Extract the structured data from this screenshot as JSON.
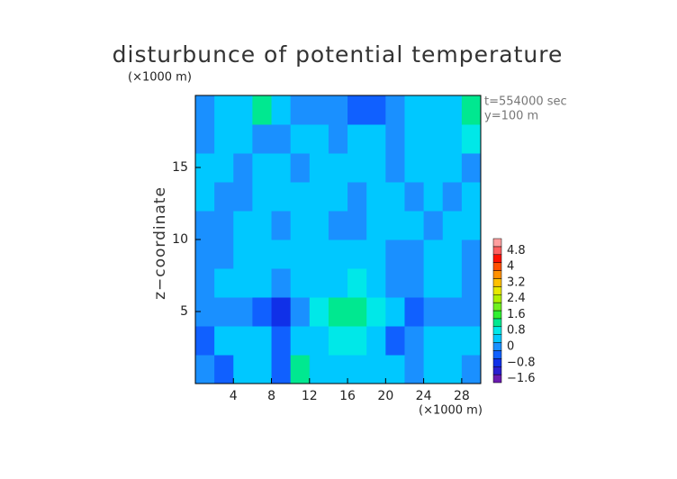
{
  "chart_data": {
    "type": "heatmap",
    "title": "disturbunce of potential temperature",
    "ylabel": "z−coordinate",
    "y_unit": "(×1000 m)",
    "x_unit": "(×1000 m)",
    "annotations": [
      "t=554000 sec",
      "y=100 m"
    ],
    "xlim": [
      0,
      30
    ],
    "ylim": [
      0,
      20
    ],
    "xticks": [
      4,
      8,
      12,
      16,
      20,
      24,
      28
    ],
    "yticks": [
      5,
      10,
      15
    ],
    "xbins": [
      0,
      2,
      4,
      6,
      8,
      10,
      12,
      14,
      16,
      18,
      20,
      22,
      24,
      26,
      28,
      30
    ],
    "ybins": [
      0,
      2,
      4,
      6,
      8,
      10,
      12,
      14,
      16,
      18,
      20
    ],
    "z": [
      [
        -0.3,
        -0.6,
        0.1,
        0.2,
        -0.6,
        0.9,
        0.3,
        0.2,
        0.1,
        0.2,
        0.1,
        -0.2,
        0.2,
        0.1,
        -0.3
      ],
      [
        -0.7,
        0.1,
        0.2,
        0.3,
        -0.5,
        0.3,
        0.3,
        0.5,
        0.4,
        0.1,
        -0.5,
        -0.3,
        0.1,
        0.2,
        0.1
      ],
      [
        -0.3,
        -0.4,
        -0.2,
        -0.6,
        -0.9,
        -0.4,
        0.5,
        0.9,
        1.0,
        0.6,
        0.1,
        -0.7,
        -0.3,
        -0.2,
        -0.4
      ],
      [
        -0.2,
        0.1,
        0.1,
        0.2,
        -0.3,
        0.2,
        0.2,
        0.3,
        0.4,
        0.1,
        -0.2,
        -0.1,
        0.2,
        0.1,
        -0.3
      ],
      [
        -0.3,
        -0.2,
        0.2,
        0.1,
        0.2,
        0.3,
        0.2,
        0.2,
        0.1,
        0.3,
        -0.2,
        -0.3,
        0.1,
        0.2,
        -0.2
      ],
      [
        -0.4,
        -0.2,
        0.1,
        0.2,
        -0.3,
        0.2,
        0.3,
        -0.3,
        -0.2,
        0.2,
        0.3,
        0.1,
        -0.3,
        0.2,
        0.1
      ],
      [
        0.2,
        -0.3,
        -0.2,
        0.3,
        0.2,
        0.1,
        0.3,
        0.1,
        -0.2,
        0.2,
        0.2,
        -0.2,
        0.2,
        -0.4,
        0.1
      ],
      [
        0.1,
        0.3,
        -0.3,
        0.1,
        0.2,
        -0.2,
        0.2,
        0.3,
        0.2,
        0.3,
        -0.3,
        0.1,
        0.2,
        0.1,
        -0.3
      ],
      [
        -0.3,
        0.2,
        0.1,
        -0.3,
        -0.2,
        0.2,
        0.3,
        -0.2,
        0.2,
        0.1,
        -0.3,
        0.2,
        0.2,
        0.3,
        0.5
      ],
      [
        -0.2,
        0.1,
        0.3,
        0.9,
        0.2,
        -0.3,
        -0.4,
        -0.3,
        -0.5,
        -0.6,
        -0.3,
        0.2,
        0.3,
        0.2,
        0.9
      ]
    ],
    "colorbar": {
      "levels": [
        -2.0,
        -1.6,
        -1.2,
        -0.8,
        -0.4,
        0,
        0.4,
        0.8,
        1.2,
        1.6,
        2.0,
        2.4,
        2.8,
        3.2,
        3.6,
        4.0,
        4.4,
        4.8,
        5.2
      ],
      "colors": [
        "#6a1bb0",
        "#2a1fd0",
        "#1030e8",
        "#1060ff",
        "#1a90ff",
        "#00c8ff",
        "#00e8e8",
        "#00e890",
        "#30f030",
        "#70f020",
        "#b0f000",
        "#e8e800",
        "#ffc000",
        "#ff9000",
        "#ff5000",
        "#ff1000",
        "#ff6060",
        "#ffa0a0"
      ],
      "ticks": [
        {
          "value": -1.6,
          "label": "−1.6"
        },
        {
          "value": -0.8,
          "label": "−0.8"
        },
        0,
        0.8,
        1.6,
        2.4,
        3.2,
        4,
        4.8
      ]
    }
  }
}
